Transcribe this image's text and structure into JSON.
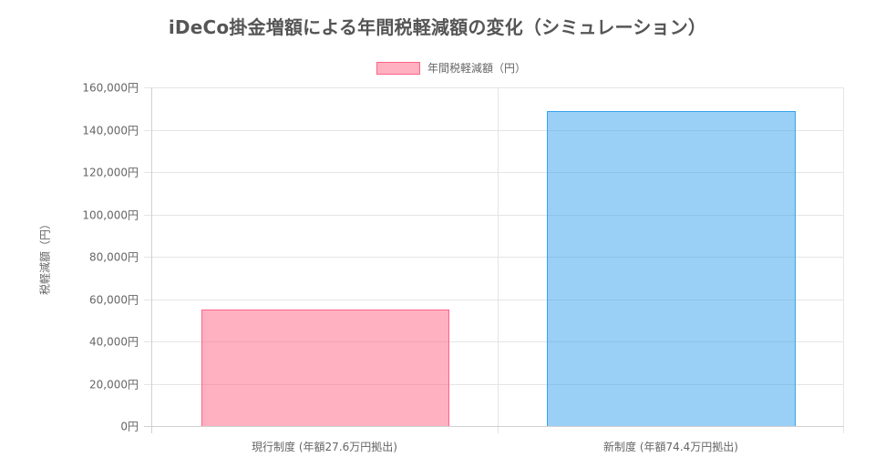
{
  "chart_data": {
    "type": "bar",
    "title": "iDeCo掛金増額による年間税軽減額の変化（シミュレーション）",
    "categories": [
      "現行制度 (年額27.6万円拠出)",
      "新制度 (年額74.4万円拠出)"
    ],
    "series": [
      {
        "name": "年間税軽減額（円）",
        "values": [
          55200,
          148800
        ],
        "colors": [
          "#ffb1c1",
          "#9ad0f5"
        ],
        "border_colors": [
          "#ff6384",
          "#36a2eb"
        ]
      }
    ],
    "xlabel": "",
    "ylabel": "税軽減額（円）",
    "ylim": [
      0,
      160000
    ],
    "yticks": [
      "0円",
      "20,000円",
      "40,000円",
      "60,000円",
      "80,000円",
      "100,000円",
      "120,000円",
      "140,000円",
      "160,000円"
    ],
    "grid": true,
    "legend_position": "top"
  },
  "header": {
    "title": "iDeCo掛金増額による年間税軽減額の変化（シミュレーション）"
  },
  "legend": {
    "label": "年間税軽減額（円）"
  },
  "axes": {
    "ylabel": "税軽減額（円）",
    "yticks": [
      "0円",
      "20,000円",
      "40,000円",
      "60,000円",
      "80,000円",
      "100,000円",
      "120,000円",
      "140,000円",
      "160,000円"
    ],
    "xticks": [
      "現行制度 (年額27.6万円拠出)",
      "新制度 (年額74.4万円拠出)"
    ]
  }
}
